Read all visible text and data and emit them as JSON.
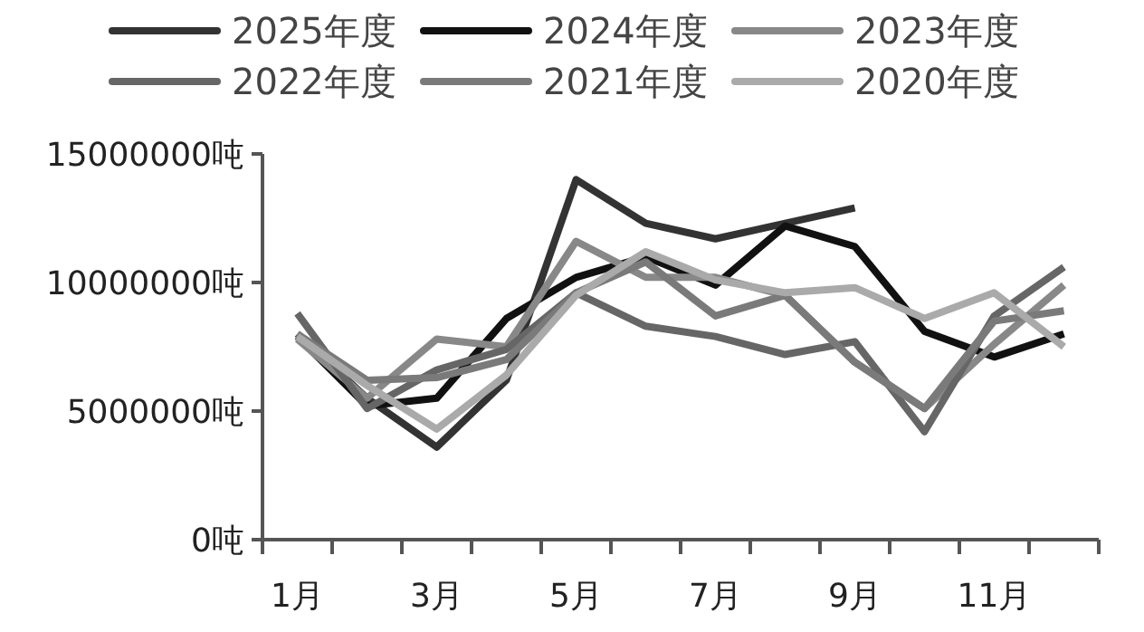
{
  "chart_data": {
    "type": "line",
    "categories": [
      "1月",
      null,
      "3月",
      null,
      "5月",
      null,
      "7月",
      null,
      "9月",
      null,
      "11月",
      null
    ],
    "series": [
      {
        "name": "2025年度",
        "color": "#333333",
        "values": [
          8000000,
          5500000,
          3600000,
          6200000,
          14000000,
          12300000,
          11700000,
          12300000,
          12900000,
          null,
          null,
          null
        ]
      },
      {
        "name": "2024年度",
        "color": "#111111",
        "values": [
          7900000,
          5200000,
          5500000,
          8600000,
          10200000,
          11000000,
          9900000,
          12200000,
          11400000,
          8100000,
          7100000,
          8000000
        ]
      },
      {
        "name": "2023年度",
        "color": "#888888",
        "values": [
          7800000,
          5500000,
          7800000,
          7500000,
          11600000,
          10200000,
          10200000,
          9500000,
          6900000,
          5100000,
          7600000,
          9900000
        ]
      },
      {
        "name": "2022年度",
        "color": "#666666",
        "values": [
          8800000,
          5100000,
          6600000,
          7400000,
          9600000,
          8300000,
          7900000,
          7200000,
          7700000,
          4200000,
          8700000,
          10600000
        ]
      },
      {
        "name": "2021年度",
        "color": "#7a7a7a",
        "values": [
          8000000,
          6200000,
          6300000,
          7000000,
          9600000,
          10800000,
          8700000,
          9500000,
          6900000,
          5100000,
          8500000,
          8900000
        ]
      },
      {
        "name": "2020年度",
        "color": "#aaaaaa",
        "values": [
          7900000,
          6000000,
          4300000,
          6400000,
          9500000,
          11200000,
          10100000,
          9600000,
          9800000,
          8600000,
          9600000,
          7500000
        ]
      }
    ],
    "ylim": [
      0,
      15000000
    ],
    "yticks": [
      {
        "value": 0,
        "label": "0吨"
      },
      {
        "value": 5000000,
        "label": "5000000吨"
      },
      {
        "value": 10000000,
        "label": "10000000吨"
      },
      {
        "value": 15000000,
        "label": "15000000吨"
      }
    ],
    "legend": "top",
    "grid": false
  }
}
